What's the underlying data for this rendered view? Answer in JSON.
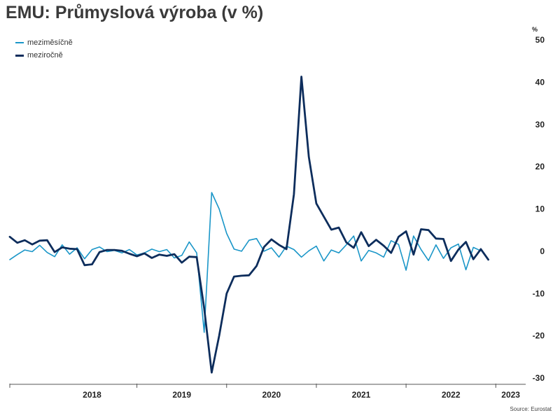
{
  "title": "EMU: Průmyslová výroba (v %)",
  "source": "Source: Eurostat",
  "chart_data": {
    "type": "line",
    "title": "EMU: Průmyslová výroba (v %)",
    "ylabel": "%",
    "xlabel": "",
    "ylim": [
      -30,
      50
    ],
    "y_ticks": [
      50,
      40,
      30,
      20,
      10,
      0,
      -10,
      -20,
      -30
    ],
    "x_ticks": [
      "2018",
      "2019",
      "2020",
      "2021",
      "2022",
      "2023"
    ],
    "y_axis_position": "right",
    "grid": false,
    "legend_position": "top-left",
    "x_start": "2017-08",
    "x_end": "2023-05",
    "series": [
      {
        "name": "meziměsíčně",
        "color": "#1a96c8",
        "values": [
          -2.0,
          -0.8,
          0.3,
          -0.1,
          1.4,
          -0.3,
          -1.3,
          1.5,
          -0.7,
          0.8,
          -1.8,
          0.4,
          1.0,
          -0.1,
          0.2,
          -0.4,
          0.4,
          -0.9,
          -0.4,
          0.5,
          -0.1,
          0.4,
          -1.6,
          -1.0,
          2.2,
          -0.4,
          -19.2,
          13.9,
          10.0,
          4.2,
          0.5,
          0.0,
          2.6,
          3.0,
          0.0,
          0.8,
          -1.4,
          1.2,
          0.4,
          -1.4,
          0.1,
          1.2,
          -2.3,
          0.3,
          -0.4,
          1.5,
          3.6,
          -2.3,
          0.2,
          -0.4,
          -1.4,
          2.5,
          1.6,
          -4.5,
          3.6,
          0.4,
          -2.2,
          1.5,
          -1.7,
          0.8,
          1.7,
          -4.4,
          0.9,
          0.1
        ]
      },
      {
        "name": "meziročně",
        "color": "#0d2d5c",
        "values": [
          3.4,
          2.0,
          2.6,
          1.6,
          2.5,
          2.6,
          -0.2,
          0.9,
          0.6,
          0.5,
          -3.3,
          -3.1,
          -0.2,
          0.3,
          0.3,
          0.1,
          -0.6,
          -1.2,
          -0.5,
          -1.6,
          -0.8,
          -1.1,
          -0.7,
          -2.7,
          -1.3,
          -1.4,
          -13.5,
          -28.7,
          -20.0,
          -10.0,
          -6.0,
          -5.8,
          -5.7,
          -3.5,
          1.0,
          2.8,
          1.5,
          0.5,
          13.5,
          41.3,
          22.3,
          11.3,
          8.2,
          5.1,
          5.6,
          2.1,
          0.8,
          4.5,
          1.2,
          2.7,
          1.3,
          -0.4,
          3.4,
          4.7,
          -0.8,
          5.2,
          5.0,
          3.0,
          2.9,
          -2.3,
          0.4,
          2.2,
          -1.9,
          0.5,
          -2.0
        ]
      }
    ]
  }
}
